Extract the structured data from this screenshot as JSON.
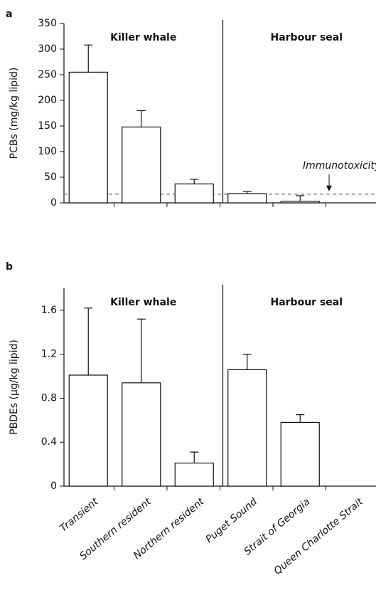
{
  "chart_data": [
    {
      "type": "bar",
      "panel_label": "a",
      "ylabel": "PCBs (mg/kg lipid)",
      "groups": [
        "Killer whale",
        "Harbour seal"
      ],
      "values": [
        255,
        148,
        37,
        18,
        3,
        null
      ],
      "errors": [
        53,
        32,
        9,
        4,
        11,
        null
      ],
      "color": "#ffffff",
      "ylim": [
        0,
        350
      ],
      "yticks": [
        0,
        50,
        100,
        150,
        200,
        250,
        300,
        350
      ],
      "threshold": {
        "value": 17,
        "label": "Immunotoxicity"
      }
    },
    {
      "type": "bar",
      "panel_label": "b",
      "ylabel": "PBDEs (µg/kg lipid)",
      "groups": [
        "Killer whale",
        "Harbour seal"
      ],
      "categories": [
        "Transient",
        "Southern resident",
        "Northern resident",
        "Puget Sound",
        "Strait of Georgia",
        "Queen Charlotte Strait"
      ],
      "values": [
        1.01,
        0.94,
        0.21,
        1.06,
        0.58,
        null
      ],
      "errors": [
        0.61,
        0.58,
        0.1,
        0.14,
        0.07,
        null
      ],
      "color": "#ffffff",
      "ylim": [
        0,
        1.8
      ],
      "yticks": [
        0,
        0.4,
        0.8,
        1.2,
        1.6
      ]
    }
  ]
}
